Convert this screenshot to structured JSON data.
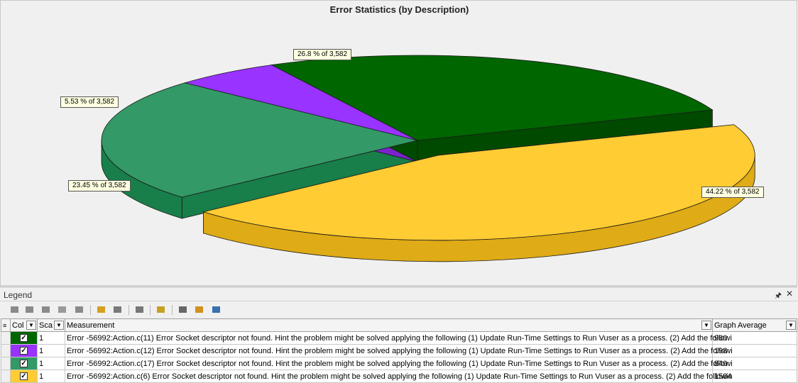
{
  "chart_data": {
    "type": "pie",
    "title": "Error Statistics (by Description)",
    "total": 3582,
    "slices": [
      {
        "label": "44.22 % of 3,582",
        "value": 1584,
        "percent": 44.22,
        "color": "#ffcc33",
        "side_color": "#dfab16",
        "exploded": true
      },
      {
        "label": "23.45 % of 3,582",
        "value": 840,
        "percent": 23.45,
        "color": "#339966",
        "side_color": "#187e4a"
      },
      {
        "label": "5.53 % of 3,582",
        "value": 198,
        "percent": 5.53,
        "color": "#9933ff",
        "side_color": "#7a22cc"
      },
      {
        "label": "26.8 % of 3,582",
        "value": 960,
        "percent": 26.8,
        "color": "#006600",
        "side_color": "#004a00"
      }
    ]
  },
  "legend": {
    "title": "Legend",
    "pin_icon": "pin-icon",
    "close_icon": "close-icon",
    "toolbar_icons": [
      "move-up-icon",
      "move-down-icon",
      "add-icon",
      "link-icon",
      "filter-icon",
      "show-icon",
      "hide-icon",
      "measurement-icon",
      "select-icon",
      "configure-icon",
      "scale-icon",
      "options-icon"
    ],
    "columns": {
      "color": "Col",
      "scale": "Sca",
      "measurement": "Measurement",
      "graph_average": "Graph Average"
    },
    "rows": [
      {
        "color": "#006600",
        "checked": true,
        "scale": "1",
        "measurement": "Error -56992:Action.c(11) Error Socket descriptor not found.  Hint the problem might be solved applying the following (1) Update Run-Time Settings to Run Vuser as a process. (2) Add the followi",
        "graph_average": "960"
      },
      {
        "color": "#9933ff",
        "checked": true,
        "scale": "1",
        "measurement": "Error -56992:Action.c(12) Error Socket descriptor not found.  Hint the problem might be solved applying the following (1) Update Run-Time Settings to Run Vuser as a process. (2) Add the followi",
        "graph_average": "198"
      },
      {
        "color": "#339966",
        "checked": true,
        "scale": "1",
        "measurement": "Error -56992:Action.c(17) Error Socket descriptor not found.  Hint the problem might be solved applying the following (1) Update Run-Time Settings to Run Vuser as a process. (2) Add the followi",
        "graph_average": "840"
      },
      {
        "color": "#ffcc33",
        "checked": true,
        "scale": "1",
        "measurement": "Error -56992:Action.c(6) Error Socket descriptor not found.  Hint the problem might be solved applying the following (1) Update Run-Time Settings to Run Vuser as a process. (2) Add the followin",
        "graph_average": "1584"
      }
    ]
  }
}
